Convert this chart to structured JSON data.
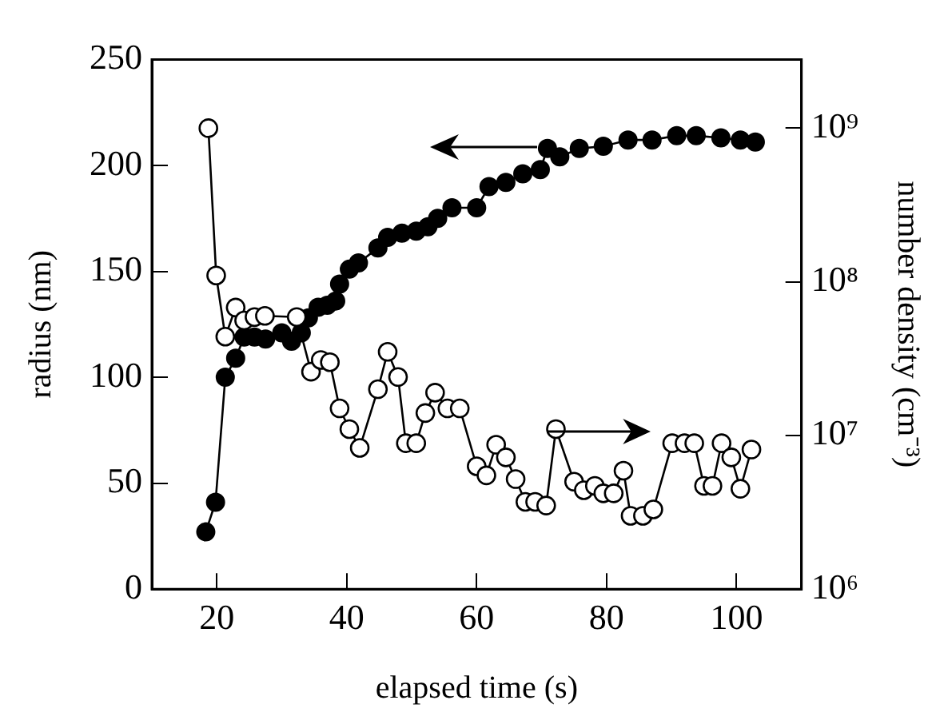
{
  "chart_data": {
    "type": "line",
    "xlabel": "elapsed time (s)",
    "ylabel": "radius (nm)",
    "y2label": "number density (cm⁻³)",
    "xlim": [
      10,
      110
    ],
    "xticks": [
      20,
      40,
      60,
      80,
      100
    ],
    "ylim": [
      0,
      250
    ],
    "yticks": [
      0,
      50,
      100,
      150,
      200,
      250
    ],
    "y2lim": [
      1000000,
      2800000000
    ],
    "y2ticks": [
      {
        "value": 1000000,
        "label": "10⁶"
      },
      {
        "value": 10000000,
        "label": "10⁷"
      },
      {
        "value": 100000000,
        "label": "10⁸"
      },
      {
        "value": 1000000000,
        "label": "10⁹"
      }
    ],
    "log": "y2",
    "grid": false,
    "legend": false,
    "marker": "circle",
    "line_style": "solid",
    "series": [
      {
        "color": "#000000",
        "x": [
          18.3,
          19.8,
          21.3,
          22.9,
          24.2,
          25.8,
          27.5,
          30,
          31.5,
          33,
          34.1,
          35.6,
          37,
          38.3,
          38.9,
          40.4,
          41.8,
          44.8,
          46.3,
          48.5,
          50.7,
          52.5,
          54,
          56.2,
          60,
          61.9,
          64.5,
          67.1,
          69.8,
          70.9,
          72.8,
          75.8,
          79.5,
          83.3,
          87,
          90.8,
          93.8,
          97.6,
          100.6,
          102.9
        ],
        "values": [
          27,
          41,
          100,
          109,
          119,
          119,
          118,
          121,
          117,
          121,
          128,
          133,
          134,
          136,
          144,
          151,
          154,
          161,
          166,
          168,
          169,
          171,
          175,
          180,
          180,
          190,
          192,
          196,
          198,
          208,
          204,
          208,
          209,
          212,
          212,
          214,
          214,
          213,
          212,
          211
        ]
      },
      {
        "color": "#ffffff",
        "axis": "y2",
        "x": [
          18.7,
          19.9,
          21.3,
          22.9,
          24.2,
          25.8,
          27.4,
          32.3,
          34.5,
          36,
          37.4,
          38.9,
          40.4,
          42,
          44.8,
          46.3,
          47.9,
          49.1,
          50.7,
          52.1,
          53.6,
          55.5,
          57.4,
          60,
          61.5,
          63,
          64.5,
          66,
          67.5,
          69,
          70.7,
          72.2,
          75,
          76.5,
          78.2,
          79.5,
          81.1,
          82.6,
          83.7,
          85.6,
          87.2,
          90.1,
          92,
          93.5,
          95,
          96.3,
          97.7,
          99.2,
          100.6,
          102.3
        ],
        "values": [
          1000000000,
          110000000,
          44000000,
          68000000,
          56000000,
          59000000,
          60000000,
          59000000,
          26000000,
          31000000,
          30000000,
          15000000,
          11000000,
          8300000,
          20000000,
          35000000,
          24000000,
          8900000,
          8900000,
          14000000,
          19000000,
          15000000,
          15000000,
          6300000,
          5500000,
          8700000,
          7200000,
          5200000,
          3700000,
          3700000,
          3500000,
          11000000,
          5000000,
          4400000,
          4700000,
          4200000,
          4200000,
          5900000,
          3000000,
          3000000,
          3300000,
          8900000,
          8900000,
          8900000,
          4700000,
          4700000,
          8900000,
          7200000,
          4500000,
          8100000
        ]
      }
    ]
  }
}
